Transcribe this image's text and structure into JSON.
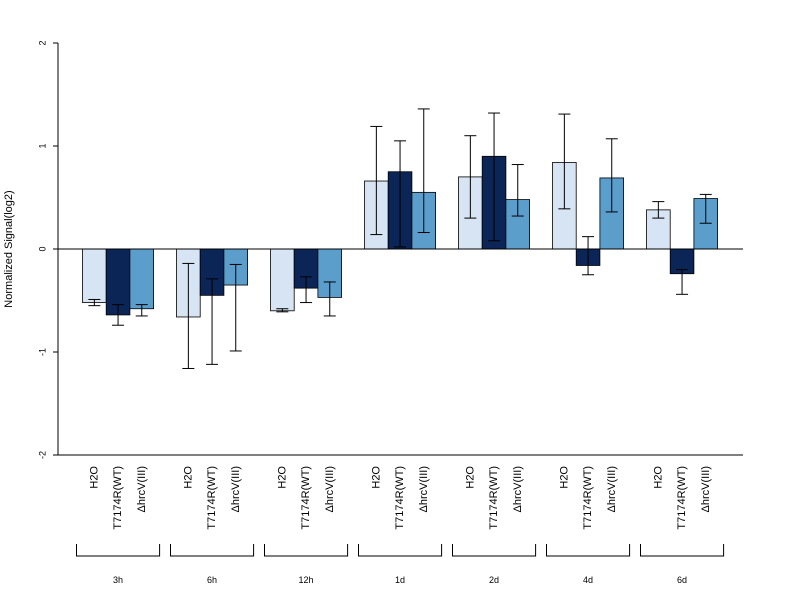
{
  "chart_data": {
    "type": "bar",
    "ylabel": "Normalized Signal(log2)",
    "ylim": [
      -2,
      2
    ],
    "yticks": [
      "-2",
      "-1",
      "0",
      "1",
      "2"
    ],
    "grid": false,
    "group_labels": [
      "3h",
      "6h",
      "12h",
      "1d",
      "2d",
      "4d",
      "6d"
    ],
    "series": [
      {
        "name": "H2O",
        "color": "#d6e4f3",
        "values": [
          -0.52,
          -0.66,
          -0.6,
          0.66,
          0.7,
          0.84,
          0.38
        ],
        "err_low": [
          -0.55,
          -1.16,
          -0.61,
          0.14,
          0.3,
          0.39,
          0.3
        ],
        "err_high": [
          -0.49,
          -0.14,
          -0.58,
          1.19,
          1.1,
          1.31,
          0.46
        ]
      },
      {
        "name": "T7174R(WT)",
        "color": "#0c2557",
        "values": [
          -0.64,
          -0.45,
          -0.38,
          0.75,
          0.9,
          -0.16,
          -0.24
        ],
        "err_low": [
          -0.74,
          -1.12,
          -0.52,
          0.02,
          0.08,
          -0.25,
          -0.44
        ],
        "err_high": [
          -0.54,
          -0.29,
          -0.27,
          1.05,
          1.32,
          0.12,
          -0.2
        ]
      },
      {
        "name": "ΔhrcV(III)",
        "color": "#5b9dcb",
        "values": [
          -0.58,
          -0.35,
          -0.47,
          0.55,
          0.48,
          0.69,
          0.49
        ],
        "err_low": [
          -0.65,
          -0.99,
          -0.65,
          0.16,
          0.32,
          0.36,
          0.25
        ],
        "err_high": [
          -0.54,
          -0.15,
          -0.32,
          1.36,
          0.82,
          1.07,
          0.53
        ]
      }
    ]
  }
}
